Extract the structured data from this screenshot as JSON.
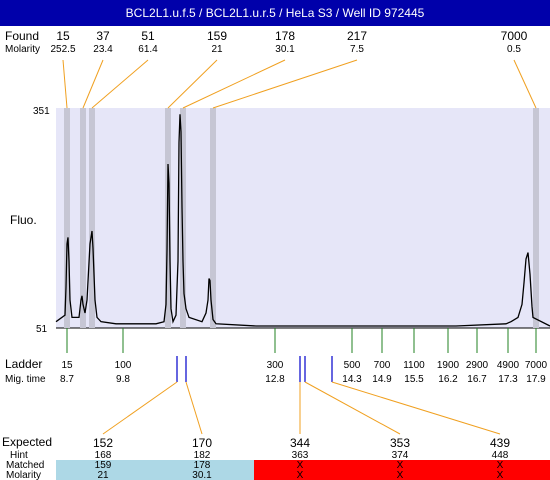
{
  "header": {
    "title": "BCL2L1.u.f.5 / BCL2L1.u.r.5 / HeLa S3 / Well ID 972445"
  },
  "labels": {
    "found": "Found",
    "molarity": "Molarity",
    "fluo": "Fluo.",
    "ladder": "Ladder",
    "mig_time": "Mig. time",
    "expected": "Expected",
    "hint": "Hint",
    "matched": "Matched",
    "molarity_row": "Molarity"
  },
  "colors": {
    "header_bg": "#0000aa",
    "plot_bg": "#e6e6f8",
    "peak_band": "#c6c6d4",
    "found_line": "#f0a020",
    "ladder_tick": "#208020",
    "marker": "#0000cc",
    "matched_ok": "#add8e6",
    "matched_bad": "#ff0000"
  },
  "chart_data": {
    "type": "line",
    "y_axis": {
      "min_label": "51",
      "max_label": "351"
    },
    "found": [
      {
        "size": "15",
        "molarity": "252.5"
      },
      {
        "size": "37",
        "molarity": "23.4"
      },
      {
        "size": "51",
        "molarity": "61.4"
      },
      {
        "size": "159",
        "molarity": "21"
      },
      {
        "size": "178",
        "molarity": "30.1"
      },
      {
        "size": "217",
        "molarity": "7.5"
      },
      {
        "size": "7000",
        "molarity": "0.5"
      }
    ],
    "ladder": [
      {
        "size": "15",
        "time": "8.7"
      },
      {
        "size": "100",
        "time": "9.8"
      },
      {
        "size": "300",
        "time": "12.8"
      },
      {
        "size": "500",
        "time": "14.3"
      },
      {
        "size": "700",
        "time": "14.9"
      },
      {
        "size": "1100",
        "time": "15.5"
      },
      {
        "size": "1900",
        "time": "16.2"
      },
      {
        "size": "2900",
        "time": "16.7"
      },
      {
        "size": "4900",
        "time": "17.3"
      },
      {
        "size": "7000",
        "time": "17.9"
      }
    ],
    "expected": [
      {
        "size": "152",
        "hint": "168",
        "matched": "159",
        "molarity": "21",
        "ok": true
      },
      {
        "size": "170",
        "hint": "182",
        "matched": "178",
        "molarity": "30.1",
        "ok": true
      },
      {
        "size": "344",
        "hint": "363",
        "matched": "X",
        "molarity": "X",
        "ok": false
      },
      {
        "size": "353",
        "hint": "374",
        "matched": "X",
        "molarity": "X",
        "ok": false
      },
      {
        "size": "439",
        "hint": "448",
        "matched": "X",
        "molarity": "X",
        "ok": false
      }
    ],
    "trace": [
      [
        0,
        0.02
      ],
      [
        9,
        0.05
      ],
      [
        10,
        0.18
      ],
      [
        11,
        0.38
      ],
      [
        12,
        0.41
      ],
      [
        13,
        0.3
      ],
      [
        14,
        0.12
      ],
      [
        16,
        0.04
      ],
      [
        23,
        0.04
      ],
      [
        25,
        0.12
      ],
      [
        26,
        0.14
      ],
      [
        27,
        0.1
      ],
      [
        29,
        0.06
      ],
      [
        31,
        0.12
      ],
      [
        34,
        0.38
      ],
      [
        36,
        0.44
      ],
      [
        37,
        0.36
      ],
      [
        39,
        0.12
      ],
      [
        41,
        0.04
      ],
      [
        45,
        0.02
      ],
      [
        60,
        0.01
      ],
      [
        80,
        0.01
      ],
      [
        100,
        0.01
      ],
      [
        108,
        0.02
      ],
      [
        110,
        0.1
      ],
      [
        111,
        0.35
      ],
      [
        112,
        0.75
      ],
      [
        113,
        0.66
      ],
      [
        114,
        0.3
      ],
      [
        115,
        0.08
      ],
      [
        117,
        0.02
      ],
      [
        120,
        0.05
      ],
      [
        122,
        0.3
      ],
      [
        123,
        0.85
      ],
      [
        124,
        0.98
      ],
      [
        125,
        0.9
      ],
      [
        126,
        0.55
      ],
      [
        127,
        0.3
      ],
      [
        128,
        0.15
      ],
      [
        130,
        0.08
      ],
      [
        133,
        0.04
      ],
      [
        146,
        0.02
      ],
      [
        150,
        0.06
      ],
      [
        152,
        0.12
      ],
      [
        153,
        0.22
      ],
      [
        154,
        0.21
      ],
      [
        155,
        0.12
      ],
      [
        157,
        0.03
      ],
      [
        160,
        0.01
      ],
      [
        200,
        0.0
      ],
      [
        300,
        0.0
      ],
      [
        400,
        0.0
      ],
      [
        450,
        0.01
      ],
      [
        455,
        0.02
      ],
      [
        462,
        0.04
      ],
      [
        466,
        0.1
      ],
      [
        468,
        0.2
      ],
      [
        470,
        0.31
      ],
      [
        472,
        0.34
      ],
      [
        474,
        0.24
      ],
      [
        476,
        0.09
      ],
      [
        477,
        0.04
      ]
    ]
  }
}
